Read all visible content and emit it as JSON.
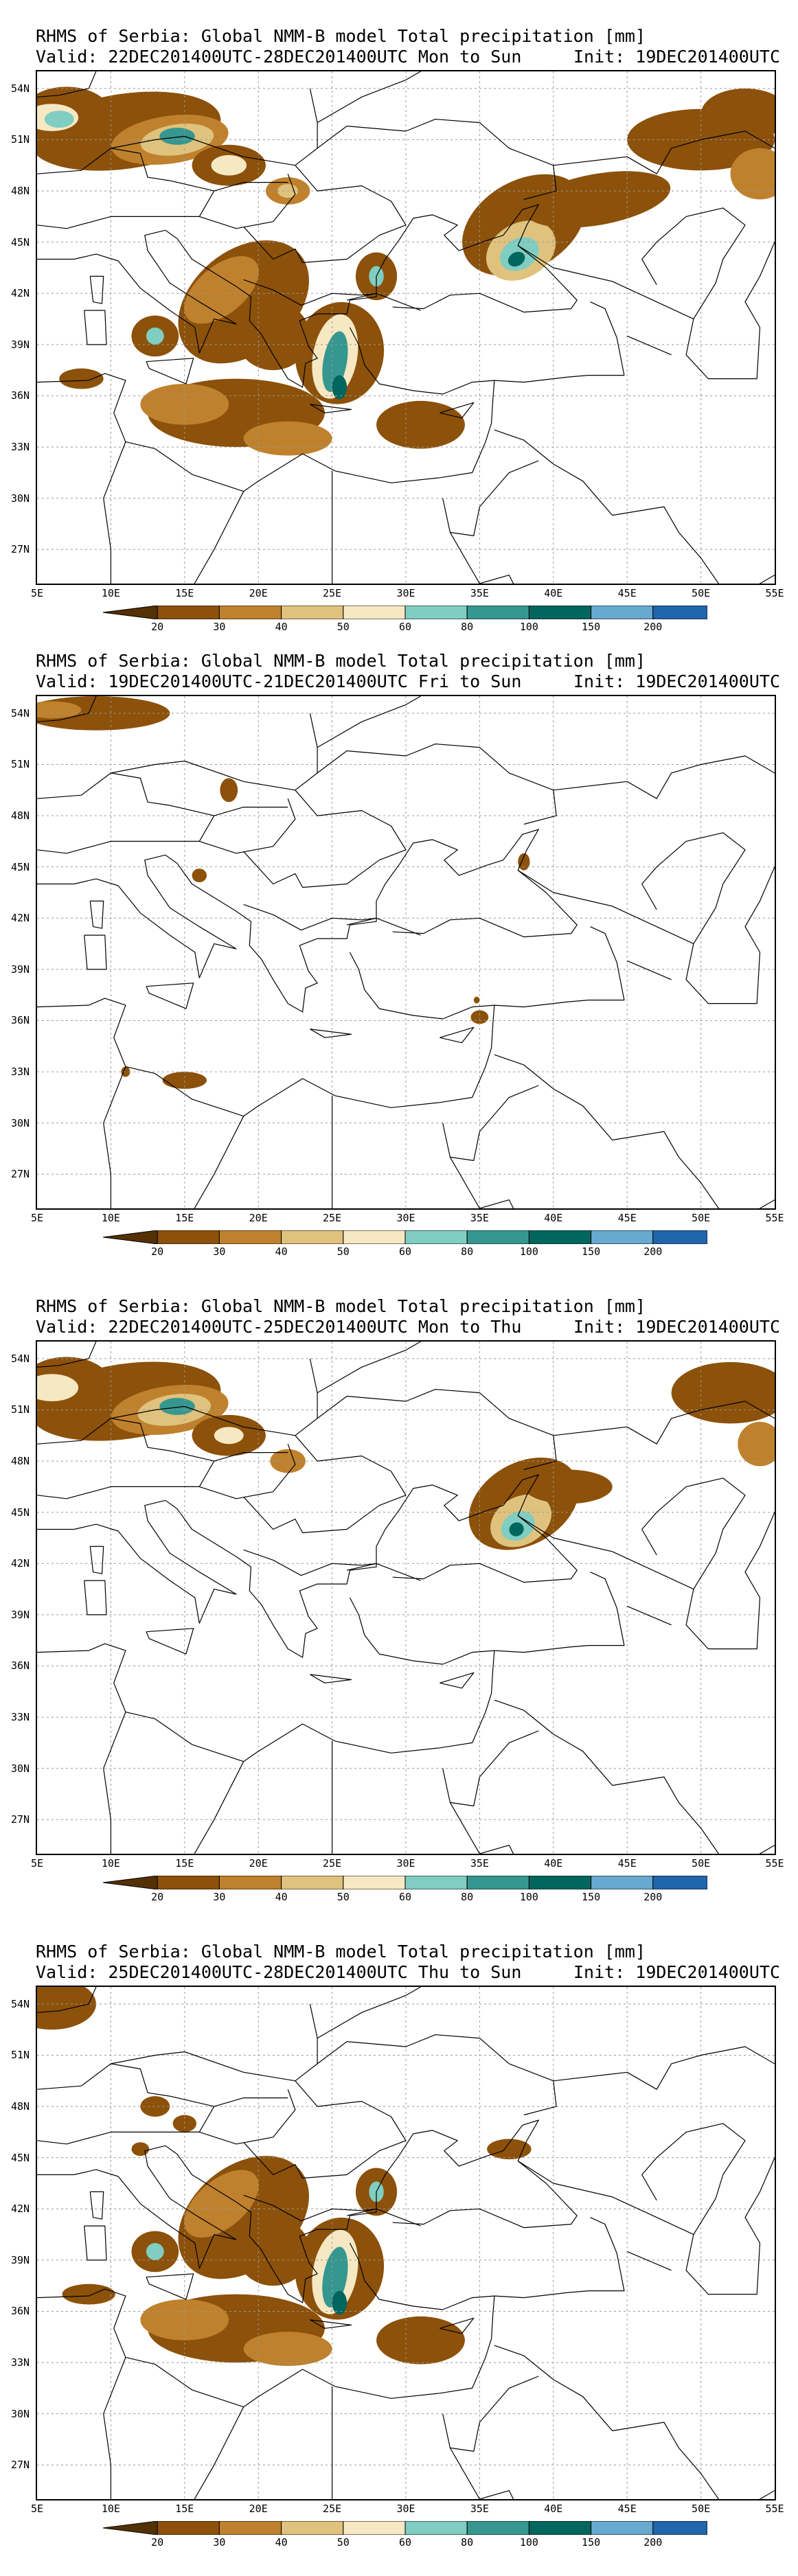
{
  "colors": {
    "c20": "#8c510a",
    "c30": "#bf812d",
    "c40": "#dfc27d",
    "c50": "#f6e8c3",
    "c60": "#80cdc1",
    "c80": "#35978f",
    "c100": "#01665e",
    "c150": "#67a9cf",
    "c200": "#2166ac",
    "c_max": "#053061",
    "c_min": "#543005"
  },
  "axes": {
    "lat_labels": [
      "54N",
      "51N",
      "48N",
      "45N",
      "42N",
      "39N",
      "36N",
      "33N",
      "30N",
      "27N"
    ],
    "lon_labels": [
      "5E",
      "10E",
      "15E",
      "20E",
      "25E",
      "30E",
      "35E",
      "40E",
      "45E",
      "50E",
      "55E"
    ]
  },
  "colorbar": {
    "labels": [
      "20",
      "30",
      "40",
      "50",
      "60",
      "80",
      "100",
      "150",
      "200"
    ]
  },
  "panels": [
    {
      "title": "RHMS of Serbia: Global NMM-B model Total precipitation [mm]",
      "valid": "Valid: 22DEC201400UTC-28DEC201400UTC Mon to Sun",
      "init": "Init: 19DEC201400UTC"
    },
    {
      "title": "RHMS of Serbia: Global NMM-B model Total precipitation [mm]",
      "valid": "Valid: 19DEC201400UTC-21DEC201400UTC Fri to Sun",
      "init": "Init: 19DEC201400UTC"
    },
    {
      "title": "RHMS of Serbia: Global NMM-B model Total precipitation [mm]",
      "valid": "Valid: 22DEC201400UTC-25DEC201400UTC Mon to Thu",
      "init": "Init: 19DEC201400UTC"
    },
    {
      "title": "RHMS of Serbia: Global NMM-B model Total precipitation [mm]",
      "valid": "Valid: 25DEC201400UTC-28DEC201400UTC Thu to Sun",
      "init": "Init: 19DEC201400UTC"
    }
  ]
}
